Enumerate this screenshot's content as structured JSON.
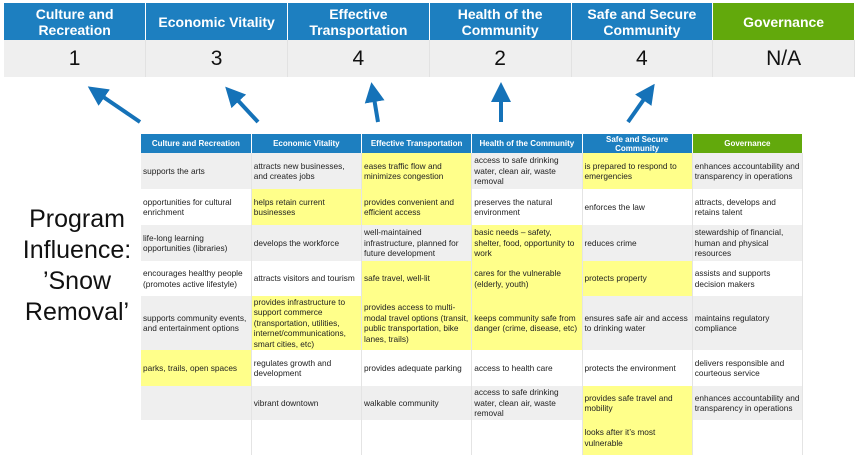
{
  "colors": {
    "header_blue": "#1d7fc0",
    "governance_green": "#62a90c",
    "highlight_yellow": "#ffff8a",
    "arrow_blue": "#1572b8"
  },
  "scores": {
    "columns": [
      {
        "label": "Culture and Recreation",
        "score": "1"
      },
      {
        "label": "Economic Vitality",
        "score": "3"
      },
      {
        "label": "Effective Transportation",
        "score": "4"
      },
      {
        "label": "Health of the Community",
        "score": "2"
      },
      {
        "label": "Safe and Secure Community",
        "score": "4"
      },
      {
        "label": "Governance",
        "score": "N/A"
      }
    ]
  },
  "side_label": {
    "line1": "Program",
    "line2": "Influence:",
    "line3": "’Snow",
    "line4": "Removal’"
  },
  "matrix": {
    "headers": [
      "Culture and Recreation",
      "Economic Vitality",
      "Effective Transportation",
      "Health of the Community",
      "Safe and Secure Community",
      "Governance"
    ],
    "rows": [
      [
        {
          "t": "supports the arts"
        },
        {
          "t": "attracts new businesses, and creates jobs"
        },
        {
          "t": "eases traffic flow and minimizes congestion",
          "hl": true
        },
        {
          "t": "access to safe drinking water, clean air, waste removal"
        },
        {
          "t": "is prepared to respond to emergencies",
          "hl": true
        },
        {
          "t": "enhances accountability and transparency in operations"
        }
      ],
      [
        {
          "t": "opportunities for cultural enrichment"
        },
        {
          "t": "helps retain current businesses",
          "hl": true
        },
        {
          "t": "provides convenient and efficient access",
          "hl": true
        },
        {
          "t": "preserves the natural environment"
        },
        {
          "t": "enforces the law"
        },
        {
          "t": "attracts, develops and retains talent"
        }
      ],
      [
        {
          "t": "life-long learning opportunities (libraries)"
        },
        {
          "t": "develops the workforce"
        },
        {
          "t": "well-maintained infrastructure, planned for future development"
        },
        {
          "t": "basic needs – safety, shelter, food, opportunity to work",
          "hl": true
        },
        {
          "t": "reduces crime"
        },
        {
          "t": "stewardship of financial, human and physical resources"
        }
      ],
      [
        {
          "t": "encourages healthy people (promotes active lifestyle)"
        },
        {
          "t": "attracts visitors and tourism"
        },
        {
          "t": "safe travel, well-lit",
          "hl": true
        },
        {
          "t": "cares for the vulnerable (elderly, youth)",
          "hl": true
        },
        {
          "t": "protects property",
          "hl": true
        },
        {
          "t": "assists and supports decision makers"
        }
      ],
      [
        {
          "t": "supports community events, and entertainment options"
        },
        {
          "t": "provides infrastructure to support commerce (transportation, utilities, internet/communications, smart cities, etc)",
          "hl": true
        },
        {
          "t": "provides access to multi-modal travel options (transit, public transportation, bike lanes, trails)",
          "hl": true
        },
        {
          "t": "keeps community safe from danger (crime, disease, etc)",
          "hl": true
        },
        {
          "t": "ensures safe air and access to drinking water"
        },
        {
          "t": "maintains regulatory compliance"
        }
      ],
      [
        {
          "t": "parks, trails, open spaces",
          "hl": true
        },
        {
          "t": "regulates growth and development"
        },
        {
          "t": "provides adequate parking"
        },
        {
          "t": "access to health care"
        },
        {
          "t": "protects the environment"
        },
        {
          "t": "delivers responsible and courteous service"
        }
      ],
      [
        {
          "t": ""
        },
        {
          "t": "vibrant downtown"
        },
        {
          "t": "walkable community"
        },
        {
          "t": "access to safe drinking water, clean air, waste removal"
        },
        {
          "t": "provides safe travel and mobility",
          "hl": true
        },
        {
          "t": "enhances accountability and transparency in operations"
        }
      ],
      [
        {
          "t": ""
        },
        {
          "t": ""
        },
        {
          "t": ""
        },
        {
          "t": ""
        },
        {
          "t": "looks after it’s most vulnerable",
          "hl": true
        },
        {
          "t": ""
        }
      ]
    ]
  }
}
